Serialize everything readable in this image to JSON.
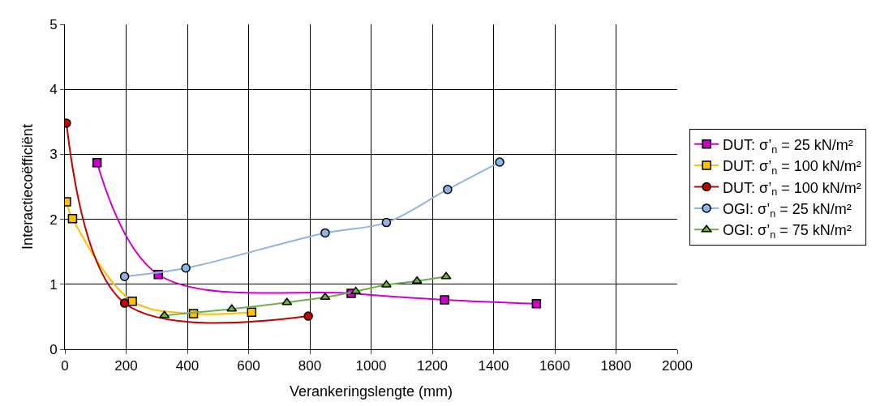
{
  "chart_data": {
    "type": "line",
    "xlabel": "Verankeringslengte (mm)",
    "ylabel": "Interactiecoëfficiënt",
    "xlim": [
      0,
      2000
    ],
    "xticks": [
      0,
      200,
      400,
      600,
      800,
      1000,
      1200,
      1400,
      1600,
      1800,
      2000
    ],
    "ylim": [
      0,
      5
    ],
    "yticks": [
      0,
      1,
      2,
      3,
      4,
      5
    ],
    "grid": true,
    "legend": "right",
    "series": [
      {
        "name": "DUT: σ’$_{n}$ = 25 kN/m²",
        "color": "#cc00cc",
        "marker": "square",
        "x": [
          105,
          305,
          935,
          1240,
          1540
        ],
        "values": [
          2.87,
          1.15,
          0.86,
          0.76,
          0.7
        ]
      },
      {
        "name": "DUT: σ’$_{n}$ = 100 kN/m²",
        "color": "#ffc000",
        "marker": "square",
        "x": [
          5,
          25,
          220,
          420,
          610
        ],
        "values": [
          2.27,
          2.01,
          0.74,
          0.55,
          0.57
        ]
      },
      {
        "name": "DUT: σ’$_{n}$ = 100 kN/m²",
        "color": "#c00000",
        "marker": "circle",
        "x": [
          5,
          195,
          795
        ],
        "values": [
          3.48,
          0.71,
          0.51
        ]
      },
      {
        "name": "OGI: σ’$_{n}$ = 25 kN/m²",
        "color": "#8eb4e3",
        "marker": "circle",
        "x": [
          195,
          395,
          850,
          1050,
          1250,
          1420
        ],
        "values": [
          1.12,
          1.25,
          1.79,
          1.95,
          2.46,
          2.88
        ]
      },
      {
        "name": "OGI: σ’$_{n}$ = 75 kN/m²",
        "color": "#70ad47",
        "marker": "triangle",
        "x": [
          325,
          545,
          725,
          850,
          950,
          1050,
          1150,
          1245
        ],
        "values": [
          0.52,
          0.62,
          0.72,
          0.8,
          0.89,
          0.99,
          1.05,
          1.12
        ]
      }
    ]
  }
}
